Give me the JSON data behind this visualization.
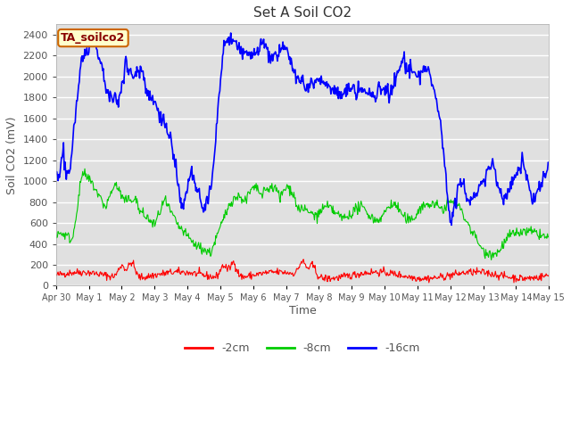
{
  "title": "Set A Soil CO2",
  "ylabel": "Soil CO2 (mV)",
  "xlabel": "Time",
  "ylim": [
    0,
    2500
  ],
  "fig_bg_color": "#ffffff",
  "plot_bg_color": "#e0e0e0",
  "legend_label": "TA_soilco2",
  "legend_bg": "#ffffcc",
  "legend_border": "#cc6600",
  "legend_text_color": "#880000",
  "line_colors": {
    "2cm": "#ff0000",
    "8cm": "#00cc00",
    "16cm": "#0000ff"
  },
  "line_labels": {
    "2cm": "-2cm",
    "8cm": "-8cm",
    "16cm": "-16cm"
  },
  "xtick_labels": [
    "Apr 30",
    "May 1",
    "May 2",
    "May 3",
    "May 4",
    "May 5",
    "May 6",
    "May 7",
    "May 8",
    "May 9",
    "May 10",
    "May 11",
    "May 12",
    "May 13",
    "May 14",
    "May 15"
  ],
  "ytick_vals": [
    0,
    200,
    400,
    600,
    800,
    1000,
    1200,
    1400,
    1600,
    1800,
    2000,
    2200,
    2400
  ],
  "n_points": 720
}
